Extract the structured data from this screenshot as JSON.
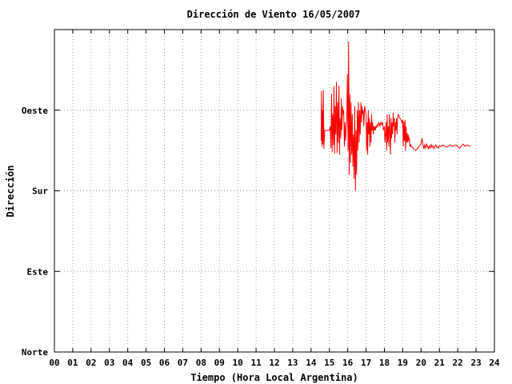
{
  "chart_data": {
    "type": "line",
    "title": "Dirección de Viento 16/05/2007",
    "xlabel": "Tiempo (Hora Local Argentina)",
    "ylabel": "Dirección",
    "xlim": [
      0,
      24
    ],
    "ylim": [
      0,
      4
    ],
    "x_tick_labels": [
      "00",
      "01",
      "02",
      "03",
      "04",
      "05",
      "06",
      "07",
      "08",
      "09",
      "10",
      "11",
      "12",
      "13",
      "14",
      "15",
      "16",
      "17",
      "18",
      "19",
      "20",
      "21",
      "22",
      "23",
      "24"
    ],
    "y_tick_labels": [
      "Norte",
      "Este",
      "Sur",
      "Oeste"
    ],
    "grid": true,
    "series_color": "#ff0000",
    "series": [
      {
        "x": [
          14.55,
          14.57,
          14.6,
          14.62,
          14.65,
          14.67,
          14.7,
          14.72,
          14.75,
          15.0,
          15.05,
          15.08,
          15.12,
          15.15,
          15.18,
          15.22,
          15.25,
          15.28,
          15.32,
          15.35,
          15.38,
          15.42,
          15.45,
          15.48,
          15.52,
          15.55,
          15.58,
          15.62,
          15.65,
          15.68,
          15.72,
          15.75,
          15.78,
          15.82,
          15.85,
          15.88,
          15.92,
          15.95,
          15.98,
          16.02,
          16.05,
          16.08,
          16.12,
          16.15,
          16.18,
          16.22,
          16.25,
          16.28,
          16.32,
          16.35,
          16.38,
          16.42,
          16.45,
          16.48,
          16.52,
          16.55,
          16.58,
          16.62,
          16.65,
          16.68,
          16.72,
          16.75,
          16.78,
          16.82,
          16.85,
          16.88,
          16.92,
          16.95,
          17.0,
          17.03,
          17.06,
          17.09,
          17.12,
          17.15,
          17.18,
          17.21,
          17.24,
          17.27,
          17.3,
          17.33,
          17.36,
          17.39,
          17.42,
          17.45,
          17.48,
          17.51,
          17.54,
          17.57,
          17.6,
          17.65,
          17.7,
          17.75,
          17.8,
          17.85,
          17.9,
          17.95,
          18.0,
          18.03,
          18.06,
          18.09,
          18.12,
          18.15,
          18.18,
          18.21,
          18.24,
          18.27,
          18.3,
          18.33,
          18.36,
          18.39,
          18.42,
          18.45,
          18.48,
          18.51,
          18.54,
          18.57,
          18.6,
          18.63,
          18.66,
          18.69,
          18.72,
          18.75,
          18.8,
          18.85,
          18.9,
          18.95,
          19.0,
          19.03,
          19.06,
          19.09,
          19.12,
          19.15,
          19.18,
          19.21,
          19.24,
          19.27,
          19.3,
          19.33,
          19.36,
          19.39,
          19.42,
          19.45,
          19.5,
          19.6,
          19.7,
          19.8,
          19.9,
          20.0,
          20.05,
          20.1,
          20.15,
          20.2,
          20.25,
          20.3,
          20.35,
          20.4,
          20.45,
          20.5,
          20.55,
          20.6,
          20.65,
          20.7,
          20.75,
          20.8,
          20.85,
          20.9,
          20.95,
          21.0,
          21.1,
          21.2,
          21.3,
          21.4,
          21.5,
          21.6,
          21.7,
          21.8,
          21.9,
          22.0,
          22.1,
          22.2,
          22.3,
          22.4,
          22.5,
          22.6,
          22.7
        ],
        "y": [
          2.62,
          3.24,
          2.55,
          3.0,
          2.58,
          3.25,
          2.52,
          2.62,
          2.75,
          2.75,
          2.8,
          2.53,
          3.2,
          2.48,
          2.95,
          2.57,
          3.3,
          2.46,
          3.05,
          2.7,
          3.35,
          2.47,
          3.1,
          2.6,
          3.3,
          2.45,
          2.9,
          2.65,
          3.15,
          2.75,
          3.05,
          2.95,
          3.0,
          2.55,
          2.85,
          2.62,
          2.78,
          2.9,
          3.45,
          2.5,
          3.85,
          2.2,
          3.2,
          2.35,
          3.1,
          2.45,
          2.95,
          2.3,
          2.7,
          2.15,
          3.05,
          2.0,
          2.75,
          2.2,
          3.0,
          2.5,
          3.1,
          2.6,
          3.0,
          2.7,
          3.1,
          2.85,
          3.05,
          2.95,
          3.0,
          2.8,
          3.05,
          3.02,
          2.95,
          2.5,
          2.85,
          2.45,
          3.0,
          2.7,
          2.9,
          2.55,
          2.85,
          2.6,
          2.95,
          2.75,
          2.85,
          2.7,
          2.8,
          2.75,
          2.8,
          2.75,
          2.8,
          2.78,
          2.82,
          2.8,
          2.85,
          2.8,
          2.85,
          2.82,
          2.85,
          2.75,
          2.8,
          2.6,
          2.7,
          2.85,
          2.5,
          2.95,
          2.6,
          2.8,
          2.55,
          2.95,
          2.7,
          2.45,
          2.9,
          2.65,
          2.85,
          2.7,
          2.97,
          2.8,
          2.9,
          2.6,
          2.85,
          2.75,
          2.9,
          2.7,
          2.9,
          2.95,
          2.92,
          2.9,
          2.88,
          2.85,
          2.88,
          2.55,
          2.86,
          2.62,
          2.88,
          2.5,
          2.8,
          2.6,
          2.72,
          2.6,
          2.7,
          2.62,
          2.66,
          2.55,
          2.58,
          2.55,
          2.55,
          2.52,
          2.5,
          2.52,
          2.55,
          2.58,
          2.65,
          2.58,
          2.52,
          2.57,
          2.53,
          2.58,
          2.55,
          2.52,
          2.56,
          2.53,
          2.57,
          2.54,
          2.56,
          2.52,
          2.55,
          2.57,
          2.54,
          2.55,
          2.53,
          2.56,
          2.55,
          2.57,
          2.55,
          2.54,
          2.56,
          2.57,
          2.55,
          2.56,
          2.57,
          2.55,
          2.53,
          2.56,
          2.58,
          2.55,
          2.57,
          2.56,
          2.55
        ]
      }
    ]
  }
}
